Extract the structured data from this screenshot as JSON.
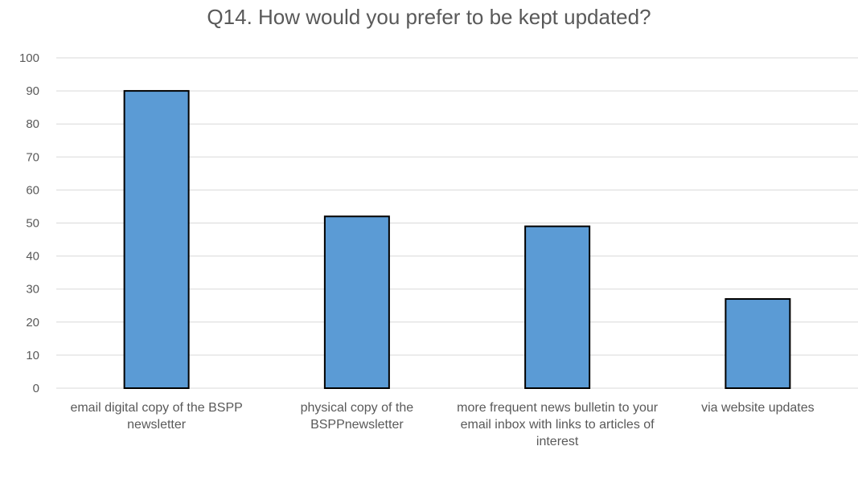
{
  "chart_data": {
    "type": "bar",
    "title": "Q14. How would you prefer to be kept updated?",
    "categories": [
      "email digital copy of the BSPP newsletter",
      "physical copy of the BSPPnewsletter",
      "more frequent news bulletin to your email inbox with links to articles of interest",
      "via website updates"
    ],
    "values": [
      90,
      52,
      49,
      27
    ],
    "ylim": [
      0,
      100
    ],
    "yticks": [
      "0",
      "10",
      "20",
      "30",
      "40",
      "50",
      "60",
      "70",
      "80",
      "90",
      "100"
    ],
    "grid": true,
    "bar_color": "#5b9bd5",
    "bar_outline_color": "#000000",
    "grid_color": "#d9d9d9"
  }
}
